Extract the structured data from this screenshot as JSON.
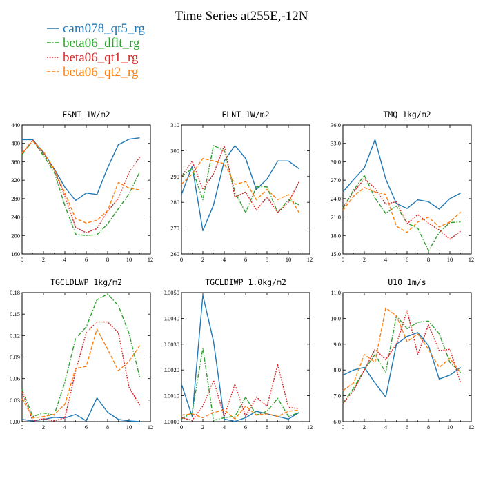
{
  "figure": {
    "title": "Time Series at255E,-12N"
  },
  "colors": {
    "cam078_qt5_rg": "#1f77b4",
    "beta06_dflt_rg": "#2ca02c",
    "beta06_qt1_rg": "#d62728",
    "beta06_qt2_rg": "#ff7f0e"
  },
  "legend": [
    {
      "name": "cam078_qt5_rg",
      "dash": "solid"
    },
    {
      "name": "beta06_dflt_rg",
      "dash": "dashdot"
    },
    {
      "name": "beta06_qt1_rg",
      "dash": "dotted"
    },
    {
      "name": "beta06_qt2_rg",
      "dash": "dashed"
    }
  ],
  "chart_data": [
    {
      "type": "line",
      "title": "FSNT  1W/m2",
      "x": [
        0,
        1,
        2,
        3,
        4,
        5,
        6,
        7,
        8,
        9,
        10,
        11
      ],
      "xlim": [
        0,
        12
      ],
      "xticks": [
        "0",
        "2",
        "4",
        "6",
        "8",
        "10",
        "12"
      ],
      "ylim": [
        160,
        440
      ],
      "yticks": [
        "160",
        "200",
        "240",
        "280",
        "320",
        "360",
        "400",
        "440"
      ],
      "grid": false,
      "series": [
        {
          "name": "cam078_qt5_rg",
          "values": [
            408,
            408,
            380,
            345,
            305,
            276,
            292,
            289,
            347,
            397,
            409,
            412
          ]
        },
        {
          "name": "beta06_dflt_rg",
          "values": [
            375,
            406,
            373,
            338,
            265,
            203,
            200,
            202,
            225,
            258,
            290,
            338
          ]
        },
        {
          "name": "beta06_qt1_rg",
          "values": [
            378,
            407,
            377,
            343,
            285,
            218,
            206,
            215,
            253,
            280,
            337,
            370
          ]
        },
        {
          "name": "beta06_qt2_rg",
          "values": [
            379,
            405,
            382,
            344,
            292,
            237,
            227,
            233,
            254,
            315,
            303,
            299
          ]
        }
      ]
    },
    {
      "type": "line",
      "title": "FLNT  1W/m2",
      "x": [
        0,
        1,
        2,
        3,
        4,
        5,
        6,
        7,
        8,
        9,
        10,
        11
      ],
      "xlim": [
        0,
        12
      ],
      "xticks": [
        "0",
        "2",
        "4",
        "6",
        "8",
        "10",
        "12"
      ],
      "ylim": [
        260,
        310
      ],
      "yticks": [
        "260",
        "270",
        "280",
        "290",
        "300",
        "310"
      ],
      "grid": false,
      "series": [
        {
          "name": "cam078_qt5_rg",
          "values": [
            283,
            294,
            269,
            279,
            296,
            302,
            297,
            285,
            289,
            296,
            296,
            293
          ]
        },
        {
          "name": "beta06_dflt_rg",
          "values": [
            290,
            293,
            281,
            302,
            300,
            284,
            276,
            286,
            286,
            276,
            281,
            279
          ]
        },
        {
          "name": "beta06_qt1_rg",
          "values": [
            290,
            296,
            285,
            291,
            302,
            282,
            284,
            277,
            282,
            276,
            280,
            288
          ]
        },
        {
          "name": "beta06_qt2_rg",
          "values": [
            287,
            291,
            297,
            296,
            295,
            287,
            288,
            281,
            285,
            281,
            283,
            276
          ]
        }
      ]
    },
    {
      "type": "line",
      "title": "TMQ  1kg/m2",
      "x": [
        0,
        1,
        2,
        3,
        4,
        5,
        6,
        7,
        8,
        9,
        10,
        11
      ],
      "xlim": [
        0,
        12
      ],
      "xticks": [
        "0",
        "2",
        "4",
        "6",
        "8",
        "10",
        "12"
      ],
      "ylim": [
        15,
        36
      ],
      "yticks": [
        "15.0",
        "18.0",
        "21.0",
        "24.0",
        "27.0",
        "30.0",
        "33.0",
        "36.0"
      ],
      "grid": false,
      "series": [
        {
          "name": "cam078_qt5_rg",
          "values": [
            25.1,
            27.1,
            29.0,
            33.6,
            27.2,
            23.2,
            22.4,
            23.8,
            23.5,
            22.3,
            24.0,
            24.9
          ]
        },
        {
          "name": "beta06_dflt_rg",
          "values": [
            22.4,
            25.4,
            27.8,
            24.1,
            21.6,
            22.8,
            20.0,
            19.2,
            15.5,
            18.5,
            20.1,
            20.2
          ]
        },
        {
          "name": "beta06_qt1_rg",
          "values": [
            22.5,
            25.1,
            27.2,
            25.7,
            23.1,
            23.5,
            19.9,
            21.4,
            20.0,
            18.9,
            17.4,
            18.7
          ]
        },
        {
          "name": "beta06_qt2_rg",
          "values": [
            22.1,
            24.4,
            25.8,
            25.1,
            24.7,
            19.5,
            18.5,
            20.2,
            21.0,
            19.4,
            20.2,
            21.8
          ]
        }
      ]
    },
    {
      "type": "line",
      "title": "TGCLDLWP  1kg/m2",
      "x": [
        0,
        1,
        2,
        3,
        4,
        5,
        6,
        7,
        8,
        9,
        10,
        11
      ],
      "xlim": [
        0,
        12
      ],
      "xticks": [
        "0",
        "2",
        "4",
        "6",
        "8",
        "10",
        "12"
      ],
      "ylim": [
        0,
        0.18
      ],
      "yticks": [
        "0.00",
        "0.03",
        "0.06",
        "0.09",
        "0.12",
        "0.15",
        "0.18"
      ],
      "grid": false,
      "series": [
        {
          "name": "cam078_qt5_rg",
          "values": [
            0.003,
            0.001,
            0.003,
            0.006,
            0.005,
            0.01,
            0.001,
            0.033,
            0.013,
            0.003,
            0.001,
            0.0
          ]
        },
        {
          "name": "beta06_dflt_rg",
          "values": [
            0.045,
            0.007,
            0.012,
            0.009,
            0.055,
            0.116,
            0.132,
            0.17,
            0.178,
            0.162,
            0.123,
            0.062
          ]
        },
        {
          "name": "beta06_qt1_rg",
          "values": [
            0.042,
            0.001,
            0.004,
            0.001,
            0.005,
            0.07,
            0.124,
            0.139,
            0.139,
            0.124,
            0.048,
            0.023
          ]
        },
        {
          "name": "beta06_qt2_rg",
          "values": [
            0.032,
            0.005,
            0.007,
            0.01,
            0.024,
            0.074,
            0.077,
            0.129,
            0.101,
            0.071,
            0.084,
            0.106
          ]
        }
      ]
    },
    {
      "type": "line",
      "title": "TGCLDIWP  1.0kg/m2",
      "x": [
        0,
        1,
        2,
        3,
        4,
        5,
        6,
        7,
        8,
        9,
        10,
        11
      ],
      "xlim": [
        0,
        12
      ],
      "xticks": [
        "0",
        "2",
        "4",
        "6",
        "8",
        "10",
        "12"
      ],
      "ylim": [
        0,
        0.005
      ],
      "yticks": [
        "0.0000",
        "0.0010",
        "0.0020",
        "0.0030",
        "0.0040",
        "0.0050"
      ],
      "grid": false,
      "series": [
        {
          "name": "cam078_qt5_rg",
          "values": [
            0.00145,
            0.0002,
            0.0049,
            0.0031,
            0.0001,
            1e-05,
            0.00015,
            0.0004,
            0.0003,
            0.0002,
            0.0001,
            0.00035
          ]
        },
        {
          "name": "beta06_dflt_rg",
          "values": [
            0.0001,
            0.00035,
            0.00285,
            5e-05,
            0.00015,
            0.0002,
            0.00095,
            0.00025,
            0.0004,
            0.0009,
            0.0002,
            0.00035
          ]
        },
        {
          "name": "beta06_qt1_rg",
          "values": [
            0.00015,
            5e-05,
            0.0006,
            0.0016,
            0.0002,
            0.00145,
            0.0002,
            0.00095,
            0.0006,
            0.0022,
            0.00055,
            0.0005
          ]
        },
        {
          "name": "beta06_qt2_rg",
          "values": [
            0.00025,
            0.0003,
            0.00015,
            0.00035,
            0.00045,
            0.0001,
            0.0006,
            0.00025,
            0.0003,
            0.0002,
            0.0004,
            0.00045
          ]
        }
      ]
    },
    {
      "type": "line",
      "title": "U10  1m/s",
      "x": [
        0,
        1,
        2,
        3,
        4,
        5,
        6,
        7,
        8,
        9,
        10,
        11
      ],
      "xlim": [
        0,
        12
      ],
      "xticks": [
        "0",
        "2",
        "4",
        "6",
        "8",
        "10",
        "12"
      ],
      "ylim": [
        6,
        11
      ],
      "yticks": [
        "6.0",
        "7.0",
        "8.0",
        "9.0",
        "10.0",
        "11.0"
      ],
      "grid": false,
      "series": [
        {
          "name": "cam078_qt5_rg",
          "values": [
            7.8,
            8.0,
            8.1,
            7.5,
            6.95,
            9.0,
            9.3,
            9.45,
            8.95,
            7.65,
            7.8,
            8.1
          ]
        },
        {
          "name": "beta06_dflt_rg",
          "values": [
            6.7,
            7.3,
            8.0,
            8.6,
            7.9,
            10.1,
            9.6,
            9.85,
            9.9,
            9.4,
            8.3,
            7.9
          ]
        },
        {
          "name": "beta06_qt1_rg",
          "values": [
            6.7,
            7.2,
            8.0,
            8.8,
            8.4,
            9.0,
            10.3,
            8.6,
            9.75,
            8.75,
            8.8,
            7.5
          ]
        },
        {
          "name": "beta06_qt2_rg",
          "values": [
            7.2,
            7.5,
            8.6,
            8.3,
            10.4,
            10.1,
            9.1,
            9.4,
            8.8,
            8.1,
            8.45,
            7.9
          ]
        }
      ]
    }
  ]
}
